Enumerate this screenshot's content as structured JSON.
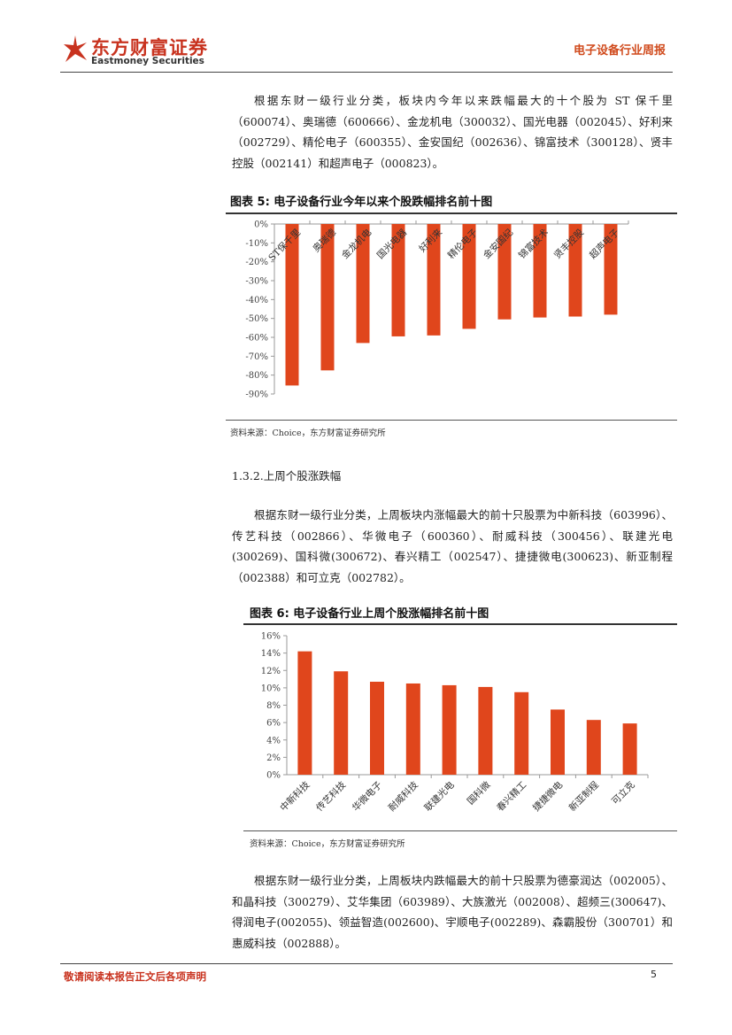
{
  "header": {
    "logo_cn": "东方财富证券",
    "logo_en": "Eastmoney Securities",
    "report_type": "电子设备行业周报"
  },
  "paragraphs": {
    "p1": "根据东财一级行业分类，板块内今年以来跌幅最大的十个股为 ST 保千里（600074）、奥瑞德（600666）、金龙机电（300032）、国光电器（002045）、好利来（002729）、精伦电子（600355）、金安国纪（002636）、锦富技术（300128）、贤丰控股（002141）和超声电子（000823）。",
    "p2": "根据东财一级行业分类，上周板块内涨幅最大的前十只股票为中新科技（603996）、传艺科技（002866）、华微电子（600360）、耐威科技（300456）、联建光电(300269)、国科微(300672)、春兴精工（002547）、捷捷微电(300623)、新亚制程（002388）和可立克（002782）。",
    "p3": "根据东财一级行业分类，上周板块内跌幅最大的前十只股票为德豪润达（002005）、和晶科技（300279）、艾华集团（603989）、大族激光（002008）、超频三(300647)、得润电子(002055)、领益智造(002600)、宇顺电子(002289)、森霸股份（300701）和惠威科技（002888）。"
  },
  "section_heading": "1.3.2.上周个股涨跌幅",
  "figures": {
    "fig5_title": "图表 5:  电子设备行业今年以来个股跌幅排名前十图",
    "fig5_source": "资料来源：Choice，东方财富证券研究所",
    "fig6_title": "图表 6:  电子设备行业上周个股涨幅排名前十图",
    "fig6_source": "资料来源：Choice，东方财富证券研究所"
  },
  "colors": {
    "bar": "#e0461c",
    "accent": "#c8321e"
  },
  "chart_data": [
    {
      "type": "bar",
      "title": "",
      "xlabel": "",
      "ylabel": "",
      "categories": [
        "ST保千里",
        "奥瑞德",
        "金龙机电",
        "国光电器",
        "好利来",
        "精伦电子",
        "金安国纪",
        "锦富技术",
        "贤丰控股",
        "超声电子"
      ],
      "values": [
        -85.5,
        -77.5,
        -63,
        -59.5,
        -59,
        -55.5,
        -50.5,
        -49.5,
        -49,
        -48
      ],
      "ylim": [
        -90,
        0
      ],
      "yticks": [
        "0%",
        "-10%",
        "-20%",
        "-30%",
        "-40%",
        "-50%",
        "-60%",
        "-70%",
        "-80%",
        "-90%"
      ],
      "grid": false,
      "legend": "none"
    },
    {
      "type": "bar",
      "title": "",
      "xlabel": "",
      "ylabel": "",
      "categories": [
        "中新科技",
        "传艺科技",
        "华微电子",
        "耐威科技",
        "联建光电",
        "国科微",
        "春兴精工",
        "捷捷微电",
        "新亚制程",
        "可立克"
      ],
      "values": [
        14.2,
        11.9,
        10.7,
        10.5,
        10.3,
        10.1,
        9.5,
        7.5,
        6.3,
        5.9
      ],
      "ylim": [
        0,
        16
      ],
      "yticks": [
        "16%",
        "14%",
        "12%",
        "10%",
        "8%",
        "6%",
        "4%",
        "2%",
        "0%"
      ],
      "grid": false,
      "legend": "none"
    }
  ],
  "footer": {
    "disclaimer": "敬请阅读本报告正文后各项声明",
    "page_number": "5"
  }
}
